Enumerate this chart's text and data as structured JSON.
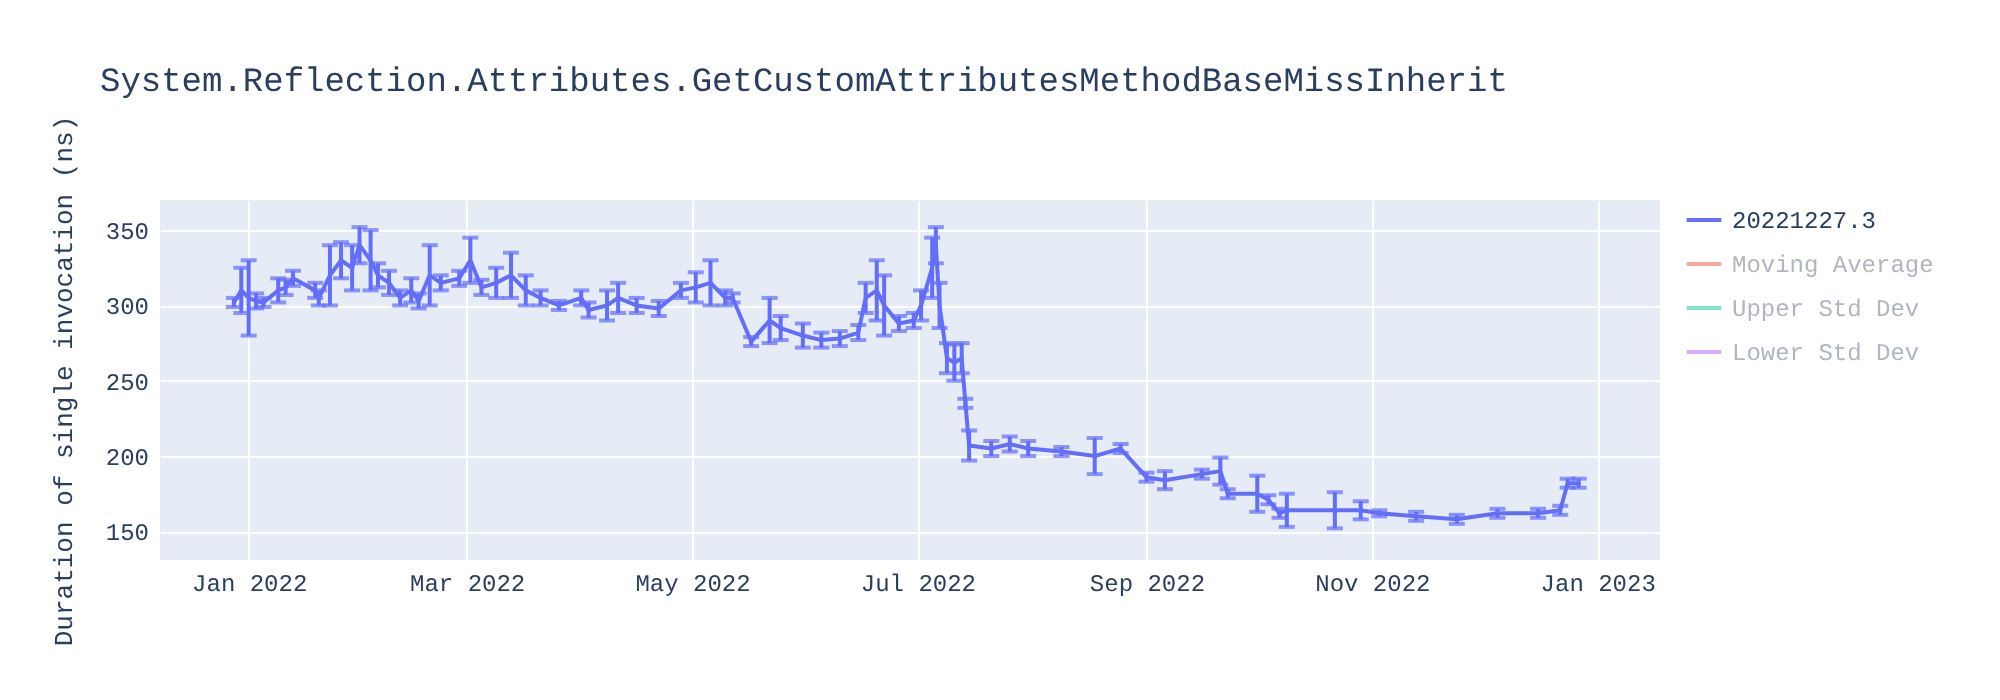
{
  "chart_data": {
    "type": "line",
    "title": "System.Reflection.Attributes.GetCustomAttributesMethodBaseMissInherit",
    "ylabel": "Duration of single invocation (ns)",
    "xlim": [
      "2021-12-08",
      "2023-01-18"
    ],
    "ylim": [
      131,
      370
    ],
    "xticks": [
      {
        "value": "2022-01-01",
        "label": "Jan 2022"
      },
      {
        "value": "2022-03-01",
        "label": "Mar 2022"
      },
      {
        "value": "2022-05-01",
        "label": "May 2022"
      },
      {
        "value": "2022-07-01",
        "label": "Jul 2022"
      },
      {
        "value": "2022-09-01",
        "label": "Sep 2022"
      },
      {
        "value": "2022-11-01",
        "label": "Nov 2022"
      },
      {
        "value": "2023-01-01",
        "label": "Jan 2023"
      }
    ],
    "yticks": [
      150,
      200,
      250,
      300,
      350
    ],
    "grid": true,
    "legend": "right",
    "marker": "none",
    "line_style": "solid",
    "series": [
      {
        "name": "20221227.3",
        "color": "#636efa",
        "x": [
          "2021-12-28",
          "2021-12-30",
          "2022-01-01",
          "2022-01-03",
          "2022-01-05",
          "2022-01-09",
          "2022-01-11",
          "2022-01-13",
          "2022-01-19",
          "2022-01-20",
          "2022-01-23",
          "2022-01-26",
          "2022-01-29",
          "2022-01-31",
          "2022-02-03",
          "2022-02-05",
          "2022-02-08",
          "2022-02-11",
          "2022-02-14",
          "2022-02-16",
          "2022-02-19",
          "2022-02-22",
          "2022-02-27",
          "2022-03-02",
          "2022-03-05",
          "2022-03-09",
          "2022-03-13",
          "2022-03-17",
          "2022-03-21",
          "2022-03-26",
          "2022-04-01",
          "2022-04-03",
          "2022-04-08",
          "2022-04-11",
          "2022-04-16",
          "2022-04-22",
          "2022-04-28",
          "2022-05-02",
          "2022-05-06",
          "2022-05-10",
          "2022-05-12",
          "2022-05-17",
          "2022-05-22",
          "2022-05-25",
          "2022-05-31",
          "2022-06-05",
          "2022-06-10",
          "2022-06-15",
          "2022-06-17",
          "2022-06-20",
          "2022-06-22",
          "2022-06-26",
          "2022-06-30",
          "2022-07-02",
          "2022-07-05",
          "2022-07-06",
          "2022-07-07",
          "2022-07-09",
          "2022-07-11",
          "2022-07-13",
          "2022-07-14",
          "2022-07-15",
          "2022-07-21",
          "2022-07-26",
          "2022-07-31",
          "2022-08-09",
          "2022-08-18",
          "2022-08-25",
          "2022-09-01",
          "2022-09-06",
          "2022-09-16",
          "2022-09-21",
          "2022-09-23",
          "2022-10-01",
          "2022-10-04",
          "2022-10-07",
          "2022-10-09",
          "2022-10-22",
          "2022-10-29",
          "2022-11-03",
          "2022-11-13",
          "2022-11-24",
          "2022-12-05",
          "2022-12-16",
          "2022-12-22",
          "2022-12-24",
          "2022-12-27"
        ],
        "values": [
          302,
          310,
          305,
          303,
          302,
          310,
          312,
          318,
          310,
          305,
          320,
          330,
          325,
          340,
          330,
          320,
          315,
          305,
          310,
          303,
          320,
          315,
          318,
          330,
          312,
          315,
          320,
          310,
          305,
          300,
          305,
          297,
          300,
          305,
          300,
          298,
          310,
          312,
          315,
          305,
          305,
          276,
          290,
          285,
          280,
          277,
          278,
          282,
          305,
          310,
          300,
          288,
          290,
          300,
          325,
          340,
          300,
          265,
          262,
          265,
          235,
          207,
          205,
          208,
          205,
          203,
          200,
          205,
          186,
          184,
          188,
          190,
          175,
          175,
          171,
          162,
          164,
          164,
          164,
          162,
          160,
          158,
          162,
          162,
          164,
          182,
          182
        ],
        "errors": [
          3,
          15,
          25,
          5,
          3,
          8,
          5,
          5,
          5,
          5,
          20,
          12,
          15,
          12,
          20,
          8,
          8,
          5,
          8,
          5,
          20,
          5,
          5,
          15,
          5,
          10,
          15,
          10,
          5,
          3,
          5,
          5,
          10,
          10,
          5,
          5,
          5,
          10,
          15,
          5,
          3,
          3,
          15,
          8,
          8,
          5,
          5,
          5,
          10,
          20,
          20,
          5,
          5,
          10,
          20,
          12,
          15,
          10,
          12,
          10,
          3,
          10,
          5,
          5,
          5,
          3,
          12,
          3,
          3,
          6,
          3,
          9,
          3,
          12,
          3,
          3,
          11,
          12,
          6,
          2,
          3,
          3,
          3,
          3,
          3,
          3,
          3
        ]
      },
      {
        "name": "Moving Average",
        "color": "#ef553b"
      },
      {
        "name": "Upper Std Dev",
        "color": "#00cc96"
      },
      {
        "name": "Lower Std Dev",
        "color": "#ab63fa"
      }
    ]
  }
}
